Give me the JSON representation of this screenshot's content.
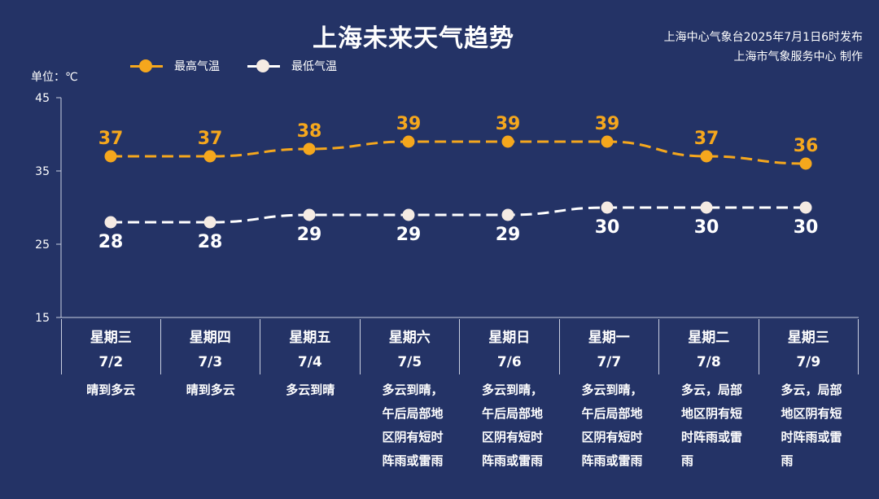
{
  "title": "上海未来天气趋势",
  "issuer": [
    "上海中心气象台2025年7月1日6时发布",
    "上海市气象服务中心 制作"
  ],
  "unit_label": "单位：℃",
  "colors": {
    "background": "#243366",
    "high": "#f5a71d",
    "low": "#ffffff",
    "low_marker": "#f5ebe3",
    "axis": "#c9cfe0"
  },
  "chart_data": {
    "type": "line",
    "yticks": [
      45,
      35,
      25,
      15
    ],
    "ylim": [
      15,
      45
    ],
    "categories": [
      "7/2",
      "7/3",
      "7/4",
      "7/5",
      "7/6",
      "7/7",
      "7/8",
      "7/9"
    ],
    "series": [
      {
        "name": "最高气温",
        "values": [
          37,
          37,
          38,
          39,
          39,
          39,
          37,
          36
        ]
      },
      {
        "name": "最低气温",
        "values": [
          28,
          28,
          29,
          29,
          29,
          30,
          30,
          30
        ]
      }
    ]
  },
  "days": [
    {
      "weekday": "星期三",
      "date": "7/2",
      "weather": "晴到多云"
    },
    {
      "weekday": "星期四",
      "date": "7/3",
      "weather": "晴到多云"
    },
    {
      "weekday": "星期五",
      "date": "7/4",
      "weather": "多云到晴"
    },
    {
      "weekday": "星期六",
      "date": "7/5",
      "weather": "多云到晴，午后局部地区阴有短时阵雨或雷雨"
    },
    {
      "weekday": "星期日",
      "date": "7/6",
      "weather": "多云到晴，午后局部地区阴有短时阵雨或雷雨"
    },
    {
      "weekday": "星期一",
      "date": "7/7",
      "weather": "多云到晴，午后局部地区阴有短时阵雨或雷雨"
    },
    {
      "weekday": "星期二",
      "date": "7/8",
      "weather": "多云，局部地区阴有短时阵雨或雷雨"
    },
    {
      "weekday": "星期三",
      "date": "7/9",
      "weather": "多云，局部地区阴有短时阵雨或雷雨"
    }
  ]
}
